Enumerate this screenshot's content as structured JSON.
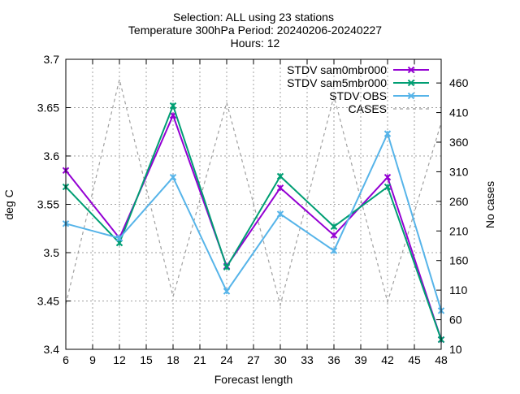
{
  "chart_data": {
    "type": "line",
    "title_lines": [
      "Selection: ALL using    23 stations",
      "Temperature 300hPa   Period: 20240206-20240227",
      "Hours: 12"
    ],
    "xlabel": "Forecast length",
    "ylabel": "deg C",
    "y2label": "No cases",
    "xlim": [
      6,
      48
    ],
    "ylim": [
      3.4,
      3.7
    ],
    "y2lim": [
      10,
      500
    ],
    "x_ticks": [
      6,
      9,
      12,
      15,
      18,
      21,
      24,
      27,
      30,
      33,
      36,
      39,
      42,
      45,
      48
    ],
    "y_ticks": [
      3.4,
      3.45,
      3.5,
      3.55,
      3.6,
      3.65,
      3.7
    ],
    "y_tick_labels": [
      "3.4",
      "3.45",
      "3.5",
      "3.55",
      "3.6",
      "3.65",
      "3.7"
    ],
    "y2_ticks": [
      10,
      60,
      110,
      160,
      210,
      260,
      310,
      360,
      410,
      460
    ],
    "grid": true,
    "legend_position": "top-right",
    "x": [
      6,
      12,
      18,
      24,
      30,
      36,
      42,
      48
    ],
    "series": [
      {
        "name": "STDV sam0mbr000",
        "axis": "y",
        "color": "#9400d3",
        "dash": false,
        "marker": "x",
        "values": [
          3.585,
          3.515,
          3.642,
          3.486,
          3.567,
          3.518,
          3.578,
          3.41
        ]
      },
      {
        "name": "STDV sam5mbr000",
        "axis": "y",
        "color": "#009e73",
        "dash": false,
        "marker": "x",
        "values": [
          3.568,
          3.51,
          3.652,
          3.485,
          3.579,
          3.527,
          3.568,
          3.41
        ]
      },
      {
        "name": "STDV OBS",
        "axis": "y",
        "color": "#56b4e9",
        "dash": false,
        "marker": "x",
        "values": [
          3.53,
          3.515,
          3.578,
          3.46,
          3.54,
          3.502,
          3.623,
          3.44
        ]
      },
      {
        "name": "CASES",
        "axis": "y2",
        "color": "#a0a0a0",
        "dash": true,
        "marker": "none",
        "values": [
          86,
          466,
          99,
          427,
          85,
          438,
          90,
          393
        ]
      }
    ]
  }
}
